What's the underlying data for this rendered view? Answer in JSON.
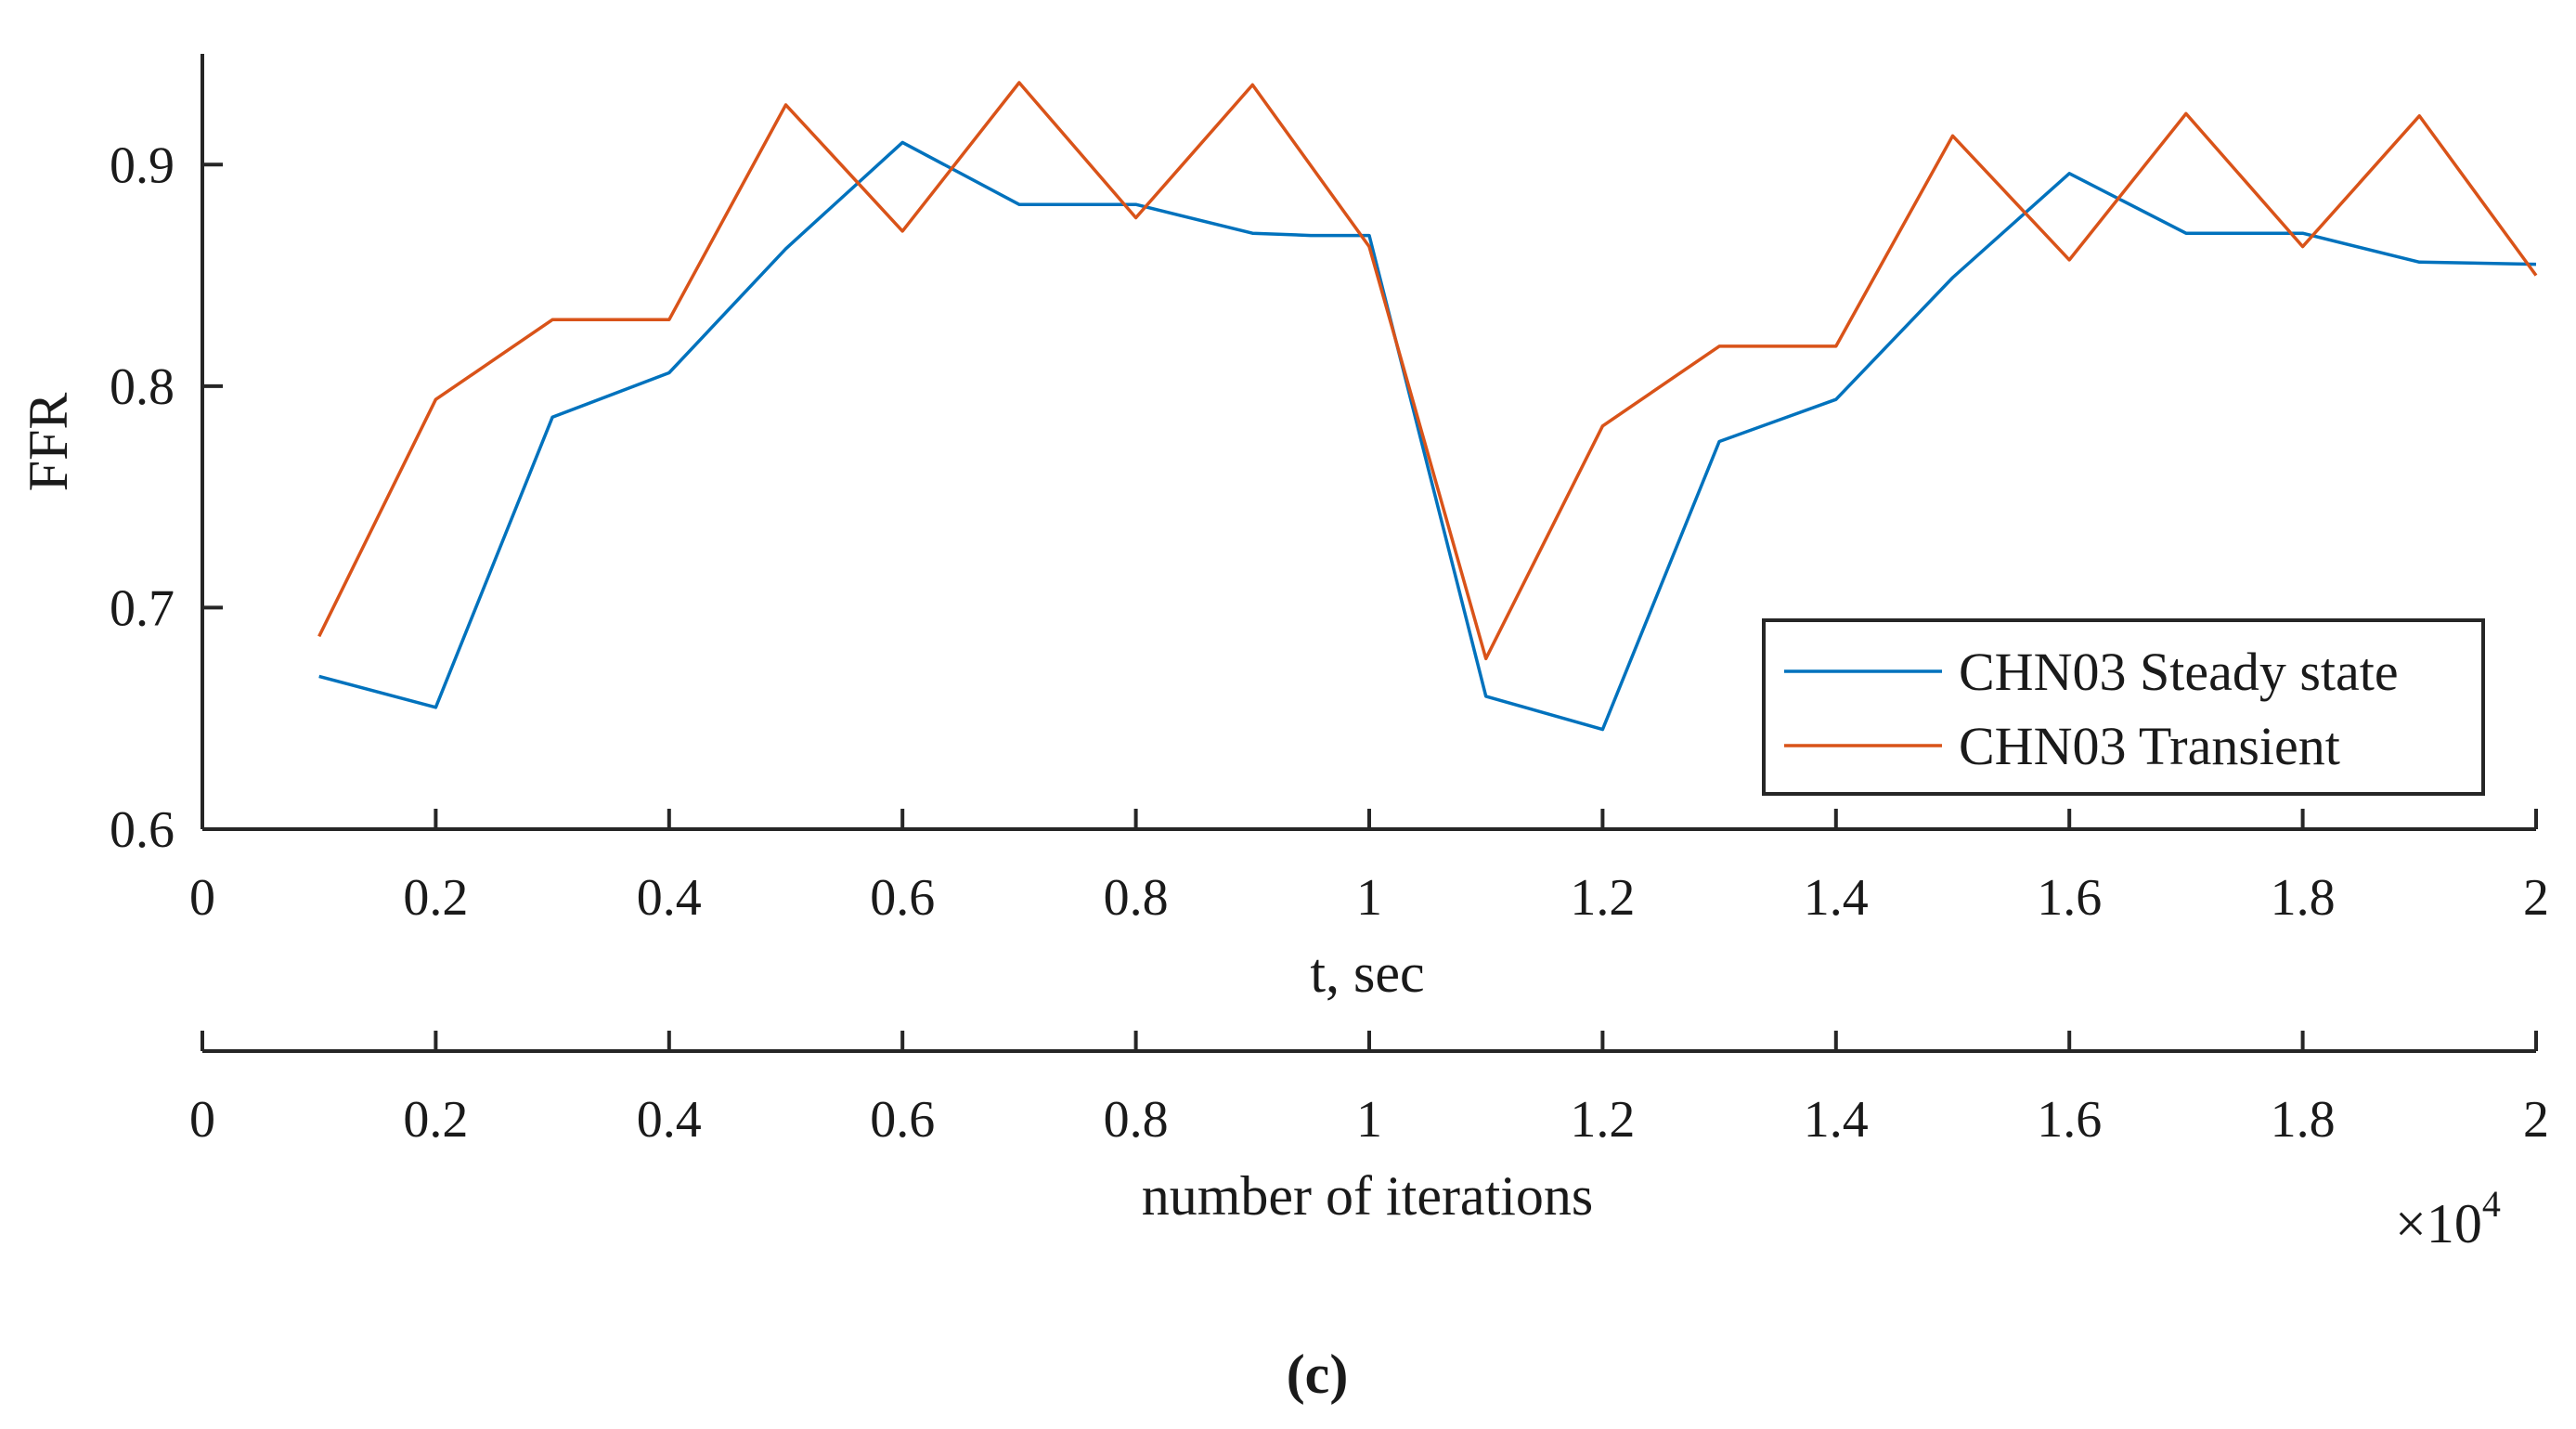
{
  "chart_data": {
    "type": "line",
    "ylabel": "FFR",
    "xlabel": "t, sec",
    "secondary_xlabel": "number of iterations",
    "secondary_multiplier": "×10",
    "secondary_exponent": "4",
    "xlim": [
      0,
      2
    ],
    "ylim": [
      0.6,
      0.95
    ],
    "x_ticks": [
      0,
      0.2,
      0.4,
      0.6,
      0.8,
      1,
      1.2,
      1.4,
      1.6,
      1.8,
      2
    ],
    "x_tick_labels": [
      "0",
      "0.2",
      "0.4",
      "0.6",
      "0.8",
      "1",
      "1.2",
      "1.4",
      "1.6",
      "1.8",
      "2"
    ],
    "secondary_tick_labels": [
      "0",
      "0.2",
      "0.4",
      "0.6",
      "0.8",
      "1",
      "1.2",
      "1.4",
      "1.6",
      "1.8",
      "2"
    ],
    "y_ticks": [
      0.6,
      0.7,
      0.8,
      0.9
    ],
    "y_tick_labels": [
      "0.6",
      "0.7",
      "0.8",
      "0.9"
    ],
    "grid": false,
    "legend_position": "bottom-right",
    "series": [
      {
        "name": "CHN03 Steady state",
        "color": "#0072BD",
        "x": [
          0.1,
          0.2,
          0.3,
          0.4,
          0.5,
          0.6,
          0.7,
          0.8,
          0.9,
          0.95,
          1.0,
          1.1,
          1.2,
          1.3,
          1.4,
          1.5,
          1.6,
          1.7,
          1.8,
          1.9,
          2.0
        ],
        "y": [
          0.669,
          0.655,
          0.786,
          0.806,
          0.862,
          0.91,
          0.882,
          0.882,
          0.869,
          0.868,
          0.868,
          0.66,
          0.645,
          0.775,
          0.794,
          0.849,
          0.896,
          0.869,
          0.869,
          0.856,
          0.855
        ]
      },
      {
        "name": "CHN03 Transient",
        "color": "#D95319",
        "x": [
          0.1,
          0.2,
          0.3,
          0.4,
          0.5,
          0.6,
          0.7,
          0.8,
          0.9,
          1.0,
          1.1,
          1.2,
          1.3,
          1.4,
          1.5,
          1.6,
          1.7,
          1.8,
          1.9,
          2.0
        ],
        "y": [
          0.687,
          0.794,
          0.83,
          0.83,
          0.927,
          0.87,
          0.937,
          0.876,
          0.936,
          0.863,
          0.677,
          0.782,
          0.818,
          0.818,
          0.913,
          0.857,
          0.923,
          0.863,
          0.922,
          0.85
        ]
      }
    ]
  },
  "panel_label": "(c)"
}
